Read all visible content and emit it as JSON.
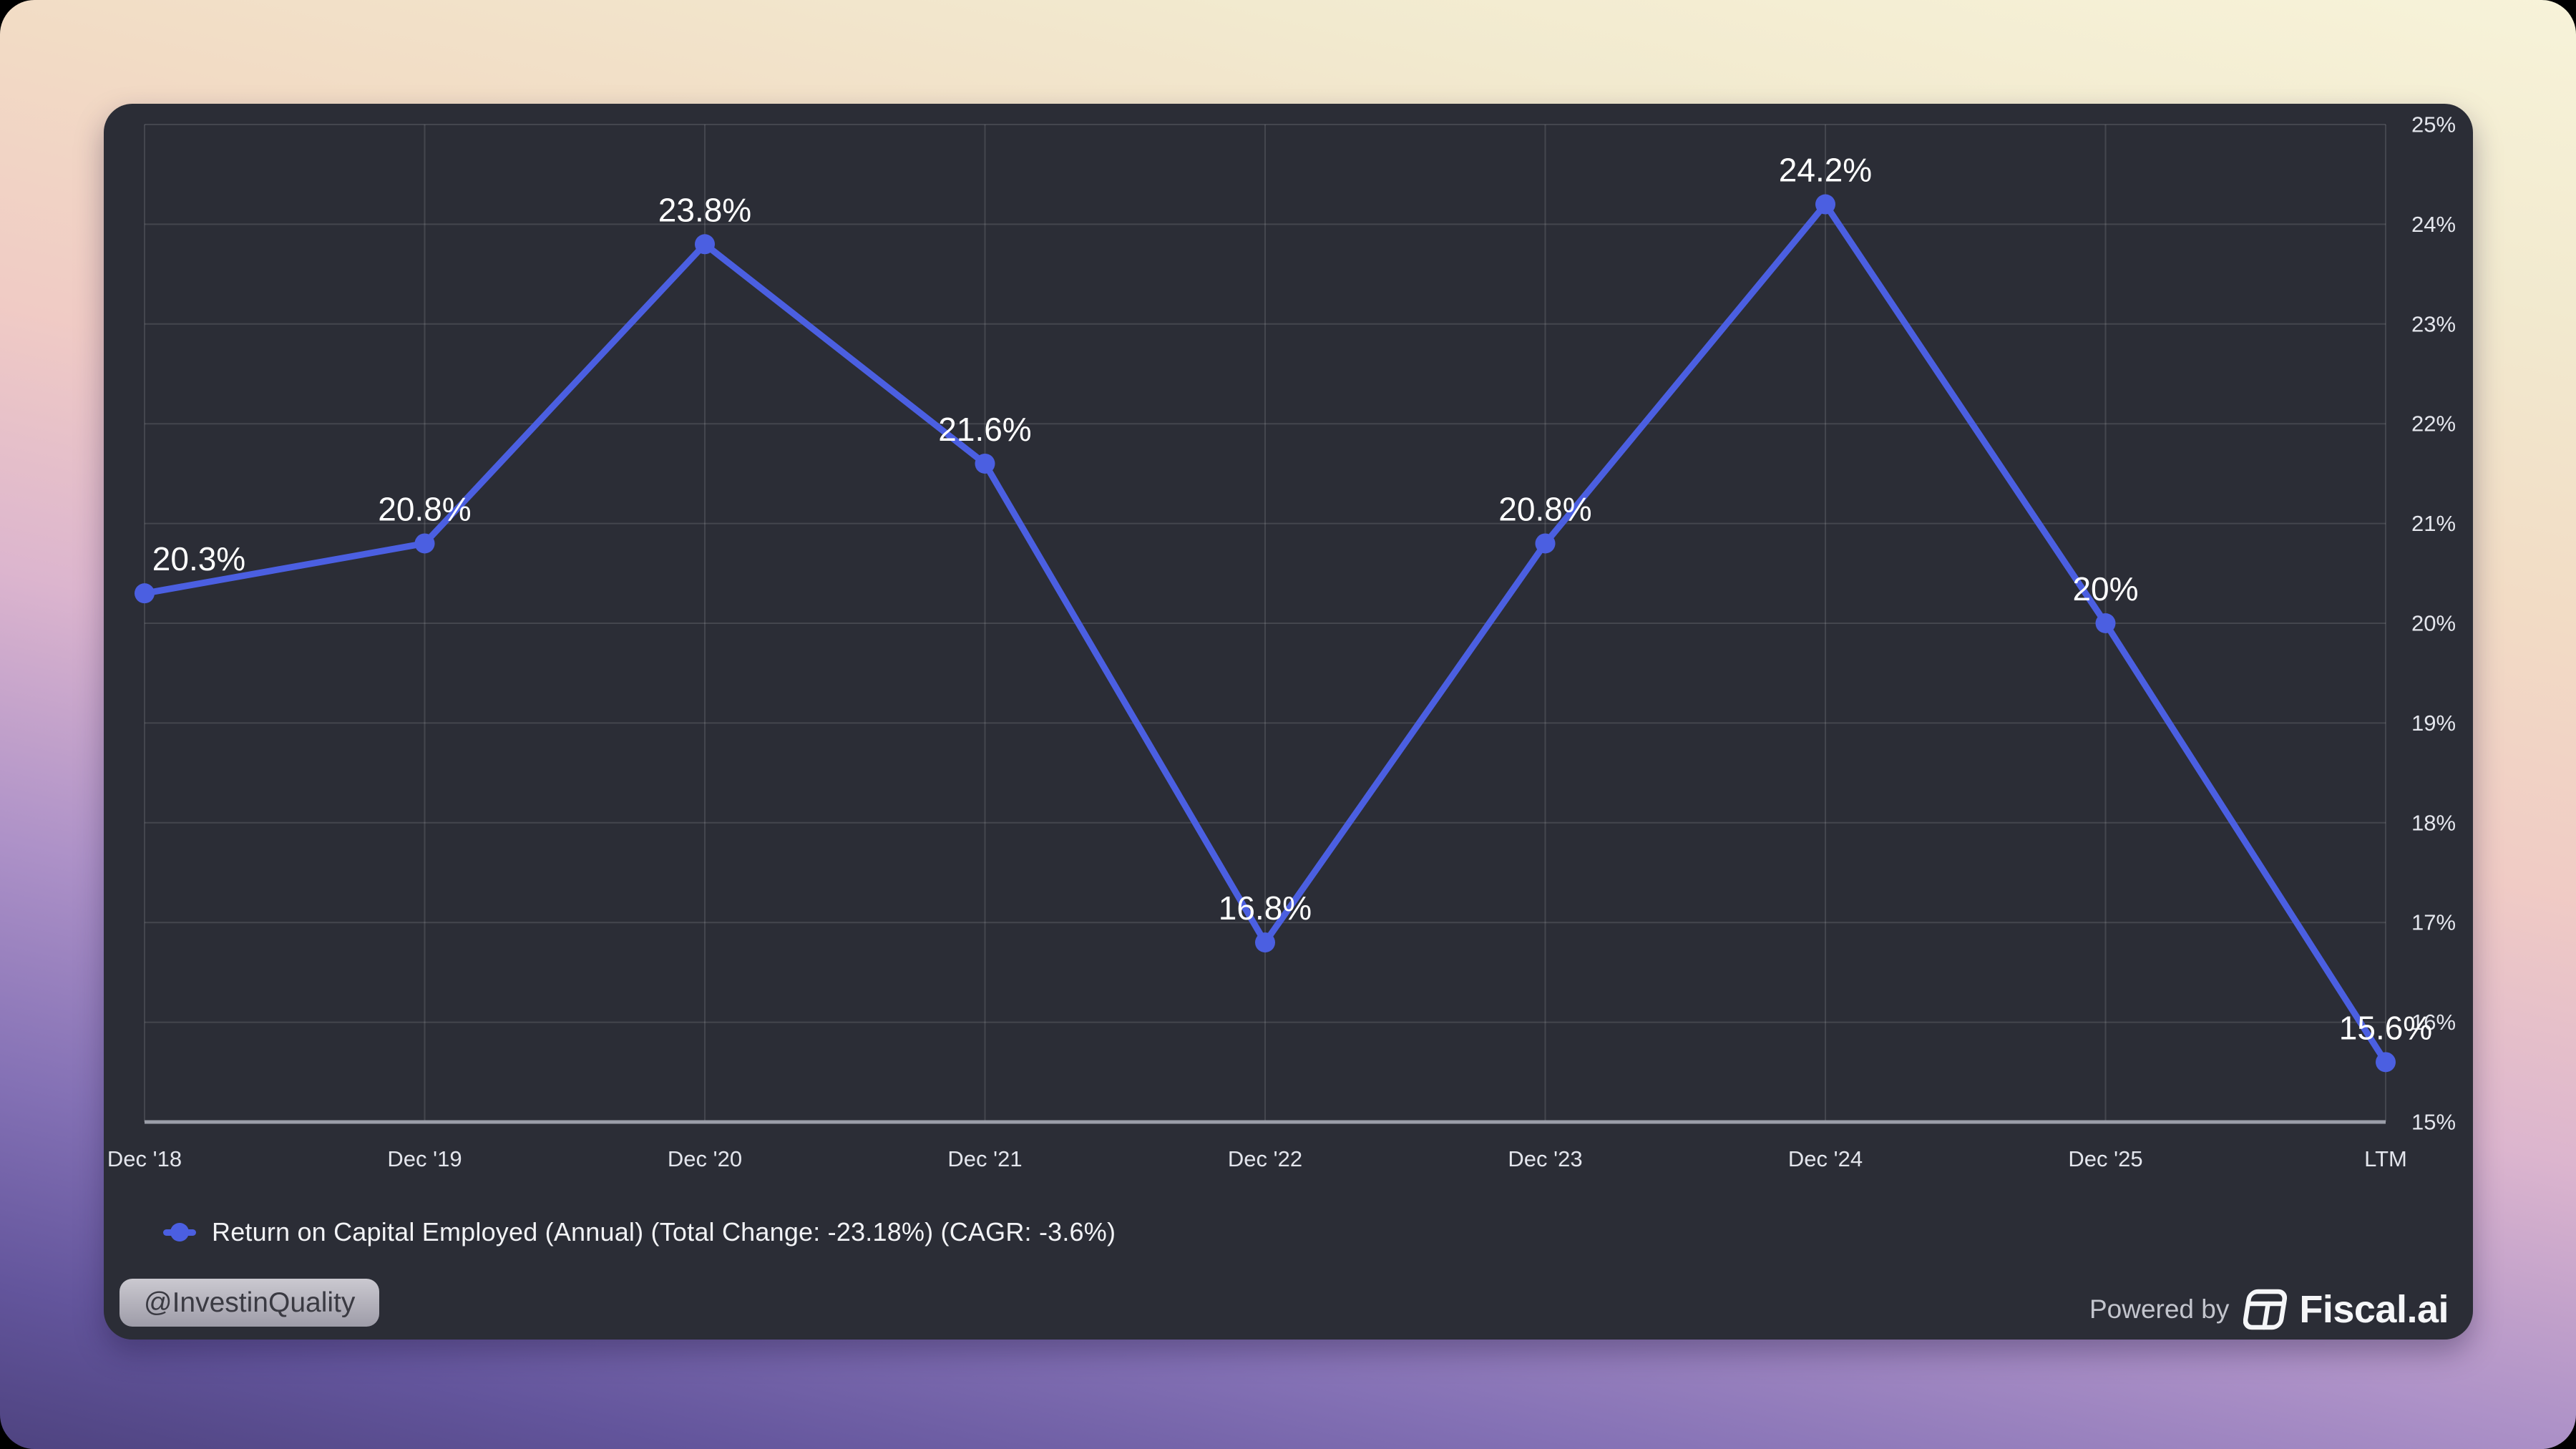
{
  "chart_data": {
    "type": "line",
    "title": "",
    "categories": [
      "Dec '18",
      "Dec '19",
      "Dec '20",
      "Dec '21",
      "Dec '22",
      "Dec '23",
      "Dec '24",
      "Dec '25",
      "LTM"
    ],
    "series": [
      {
        "name": "Return on Capital Employed (Annual)",
        "values": [
          20.3,
          20.8,
          23.8,
          21.6,
          16.8,
          20.8,
          24.2,
          20,
          15.6
        ]
      }
    ],
    "point_labels": [
      "20.3%",
      "20.8%",
      "23.8%",
      "21.6%",
      "16.8%",
      "20.8%",
      "24.2%",
      "20%",
      "15.6%"
    ],
    "ylim": [
      15,
      25
    ],
    "yticks": [
      15,
      16,
      17,
      18,
      19,
      20,
      21,
      22,
      23,
      24,
      25
    ],
    "ytick_labels": [
      "15%",
      "16%",
      "17%",
      "18%",
      "19%",
      "20%",
      "21%",
      "22%",
      "23%",
      "24%",
      "25%"
    ],
    "grid": true,
    "legend_position": "bottom-left",
    "ytick_side": "right"
  },
  "colors": {
    "line": "#4b5fe1",
    "card_bg": "#2b2d36",
    "gridline": "rgba(255,255,255,0.12)",
    "axis_line": "#9b9ea9",
    "tick_text": "#e4e6ed",
    "data_label": "#ffffff"
  },
  "legend": {
    "label": "Return on Capital Employed (Annual) (Total Change: -23.18%) (CAGR: -3.6%)"
  },
  "badge": {
    "text": "@InvestinQuality"
  },
  "footer": {
    "powered_by": "Powered by",
    "brand": "Fiscal.ai"
  }
}
